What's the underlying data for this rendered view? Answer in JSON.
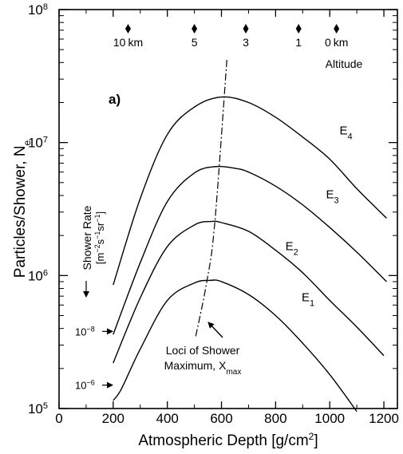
{
  "chart_data": {
    "type": "line",
    "panel_label": "a)",
    "xlabel": "Atmospheric Depth [g/cm",
    "xlabel_sup": "2",
    "xlabel_end": "]",
    "ylabel": "Particles/Shower, N",
    "ylabel_sub": "e",
    "x_ticks": [
      0,
      200,
      400,
      600,
      800,
      1000,
      1200
    ],
    "y_ticks": [
      {
        "value": 100000,
        "base": "10",
        "exp": "5"
      },
      {
        "value": 1000000,
        "base": "10",
        "exp": "6"
      },
      {
        "value": 10000000,
        "base": "10",
        "exp": "7"
      },
      {
        "value": 100000000,
        "base": "10",
        "exp": "8"
      }
    ],
    "xlim": [
      0,
      1250
    ],
    "ylim": [
      100000,
      100000000
    ],
    "yscale": "log",
    "grid": false,
    "series": [
      {
        "name": "E1",
        "label_main": "E",
        "label_sub": "1",
        "label_at": {
          "x": 920,
          "y": 640000
        },
        "x": [
          200,
          230,
          300,
          400,
          500,
          560,
          600,
          700,
          800,
          900,
          1000,
          1100
        ],
        "y": [
          115000,
          140000,
          280000,
          650000,
          880000,
          920000,
          900000,
          720000,
          500000,
          310000,
          180000,
          95000
        ]
      },
      {
        "name": "E2",
        "label_main": "E",
        "label_sub": "2",
        "label_at": {
          "x": 860,
          "y": 1550000
        },
        "x": [
          200,
          300,
          400,
          500,
          560,
          600,
          700,
          800,
          900,
          1000,
          1100,
          1200
        ],
        "y": [
          220000,
          680000,
          1650000,
          2400000,
          2550000,
          2500000,
          2150000,
          1550000,
          1050000,
          650000,
          410000,
          250000
        ]
      },
      {
        "name": "E3",
        "label_main": "E",
        "label_sub": "3",
        "label_at": {
          "x": 1010,
          "y": 3800000
        },
        "x": [
          200,
          300,
          400,
          500,
          580,
          650,
          700,
          800,
          900,
          1000,
          1100,
          1210
        ],
        "y": [
          360000,
          1250000,
          3600000,
          5900000,
          6600000,
          6400000,
          6000000,
          4700000,
          3400000,
          2300000,
          1500000,
          900000
        ]
      },
      {
        "name": "E4",
        "label_main": "E",
        "label_sub": "4",
        "label_at": {
          "x": 1060,
          "y": 11500000
        },
        "x": [
          200,
          300,
          400,
          500,
          600,
          700,
          800,
          900,
          1000,
          1100,
          1210
        ],
        "y": [
          850000,
          3800000,
          11500000,
          18500000,
          22000000,
          20000000,
          15500000,
          11000000,
          7500000,
          4500000,
          2700000
        ]
      }
    ],
    "xmax_locus": {
      "x": [
        505,
        545,
        575,
        620
      ],
      "y": [
        350000,
        880000,
        2450000,
        42000000
      ]
    },
    "annotations": {
      "locus_line1": "Loci of Shower",
      "locus_line2": "Maximum, X",
      "locus_sub": "max",
      "shower_rate_line1": "Shower  Rate",
      "shower_rate_line2": "[m",
      "shower_rate_units": "[m-2s-1sr-1]",
      "rate_1": {
        "base": "10",
        "exp": "-8",
        "y": 380000
      },
      "rate_2": {
        "base": "10",
        "exp": "-6",
        "y": 150000
      }
    },
    "altitude_axis": {
      "title": "Altitude",
      "markers": [
        {
          "label": "10",
          "unit": "km",
          "x": 255
        },
        {
          "label": "5",
          "unit": "",
          "x": 500
        },
        {
          "label": "3",
          "unit": "",
          "x": 690
        },
        {
          "label": "1",
          "unit": "",
          "x": 885
        },
        {
          "label": "0",
          "unit": "km",
          "x": 1025
        }
      ]
    }
  }
}
